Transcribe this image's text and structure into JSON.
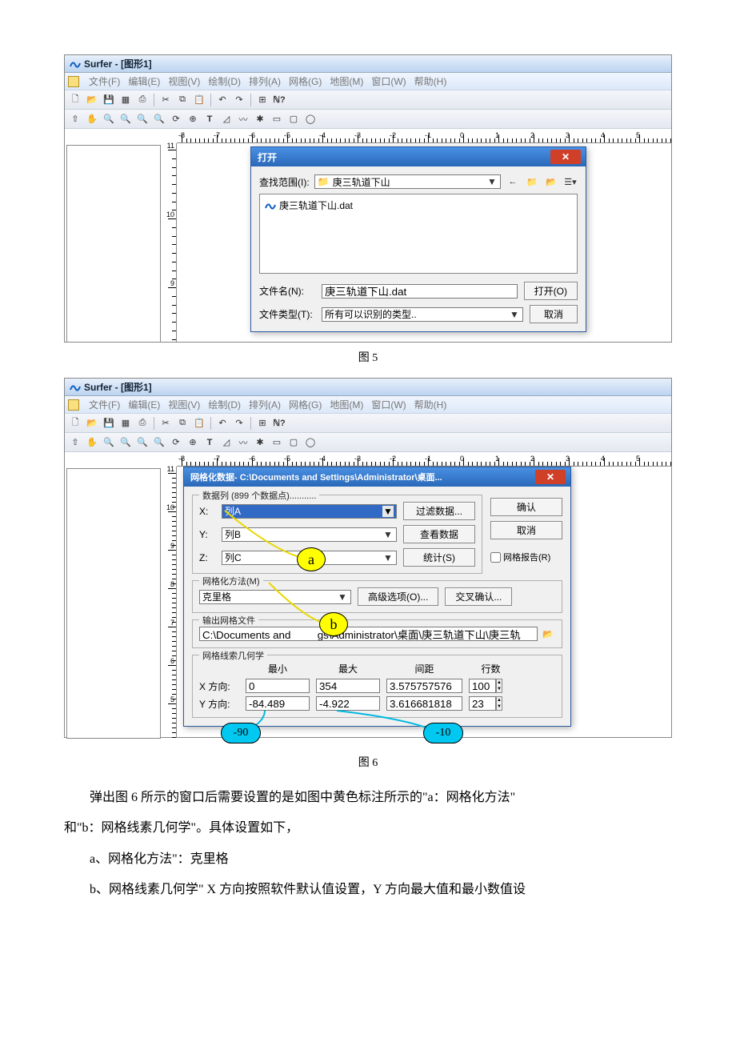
{
  "app": {
    "title": "Surfer - [图形1]",
    "menu": [
      "文件(F)",
      "编辑(E)",
      "视图(V)",
      "绘制(D)",
      "排列(A)",
      "网格(G)",
      "地图(M)",
      "窗口(W)",
      "帮助(H)"
    ]
  },
  "ruler_h": {
    "start": -8,
    "end": 5,
    "step": 1
  },
  "ruler_v_1": {
    "labels": [
      "11",
      "10",
      "9"
    ]
  },
  "ruler_v_2": {
    "labels": [
      "11",
      "10",
      "9",
      "8",
      "7",
      "6",
      "5"
    ]
  },
  "dialog_open": {
    "title": "打开",
    "lookin_label": "查找范围(I):",
    "lookin_value": "庚三轨道下山",
    "file": "庚三轨道下山.dat",
    "filename_label": "文件名(N):",
    "filename_value": "庚三轨道下山.dat",
    "filetype_label": "文件类型(T):",
    "filetype_value": "所有可以识别的类型..",
    "open_btn": "打开(O)",
    "cancel_btn": "取消"
  },
  "dialog_grid": {
    "title": "网格化数据- C:\\Documents and Settings\\Administrator\\桌面...",
    "data_col_label": "数据列   (899 个数据点)........... ",
    "x_label": "X:",
    "x_val": "列A",
    "y_label": "Y:",
    "y_val": "列B",
    "z_label": "Z:",
    "z_val": "列C",
    "filter_btn": "过滤数据...",
    "view_btn": "查看数据",
    "stats_btn": "统计(S)",
    "ok_btn": "确认",
    "cancel_btn": "取消",
    "report_chk": "网格报告(R)",
    "method_label": "网格化方法(M)",
    "method_val": "克里格",
    "adv_btn": "高级选项(O)...",
    "cross_btn": "交叉确认...",
    "output_label": "输出网格文件",
    "output_val": "C:\\Documents and         gs\\Administrator\\桌面\\庚三轨道下山\\庚三轨",
    "geom_label": "网格线索几何学",
    "min_h": "最小",
    "max_h": "最大",
    "spc_h": "间距",
    "lines_h": "行数",
    "xdir": "X 方向:",
    "x_min": "0",
    "x_max": "354",
    "x_spc": "3.575757576",
    "x_lines": "100",
    "ydir": "Y 方向:",
    "y_min": "-84.489",
    "y_max": "-4.922",
    "y_spc": "3.616681818",
    "y_lines": "23"
  },
  "callouts": {
    "a": "a",
    "b": "b",
    "neg90": "-90",
    "neg10": "-10"
  },
  "caption5": "图 5",
  "caption6": "图 6",
  "text": {
    "p1": "弹出图 6 所示的窗口后需要设置的是如图中黄色标注所示的\"a：网格化方法\"",
    "p2": "和\"b：网格线素几何学\"。具体设置如下，",
    "p3": "a、网格化方法\"：克里格",
    "p4": "b、网格线素几何学\" X 方向按照软件默认值设置，Y 方向最大值和最小数值设"
  },
  "colors": {
    "yellow": "#ffff00",
    "blue": "#00c8f0",
    "close_red": "#d04028",
    "title_grad_a": "#4a90e4",
    "title_grad_b": "#2a68b8"
  }
}
